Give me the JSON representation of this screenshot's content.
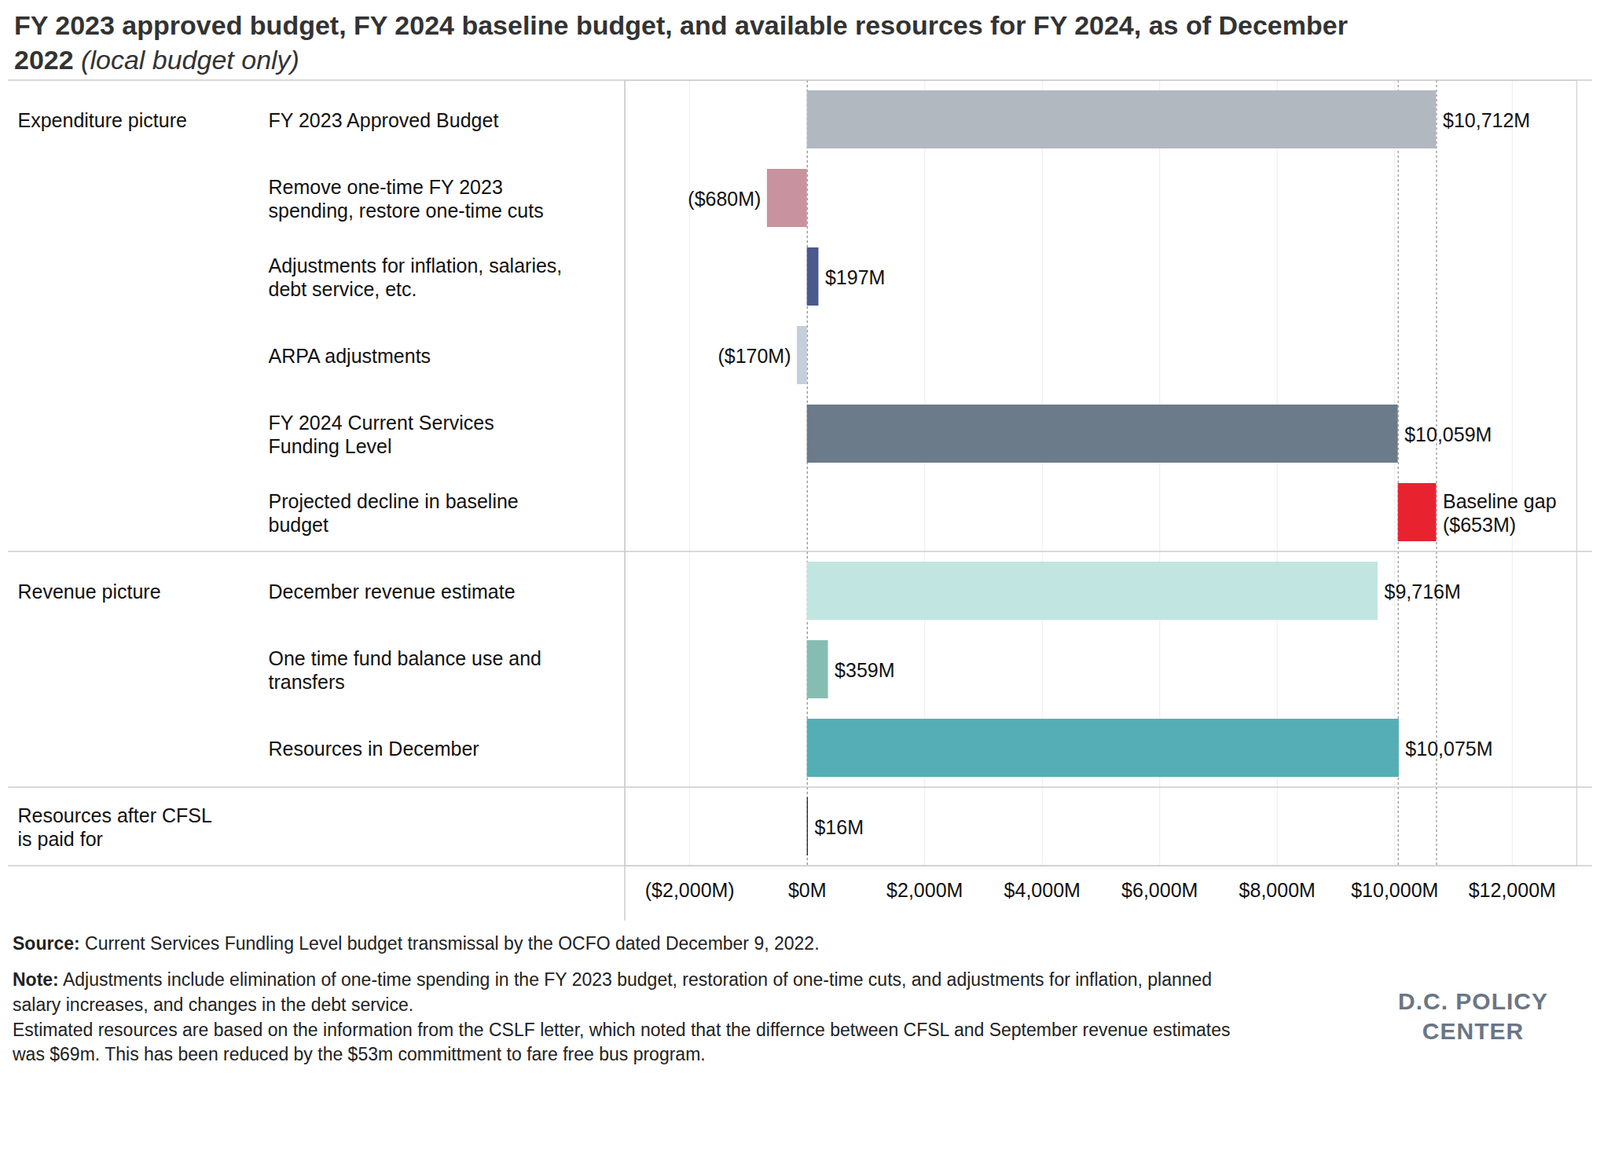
{
  "chart_data": {
    "type": "bar",
    "orientation": "horizontal",
    "title": "FY 2023 approved budget, FY 2024 baseline budget, and available resources for FY 2024, as of December 2022",
    "subtitle": "(local budget only)",
    "row_groups": [
      "Expenditure picture",
      null,
      null,
      null,
      null,
      null,
      "Revenue picture",
      null,
      null,
      "Resources after CFSL\nis paid for"
    ],
    "categories": [
      "FY 2023 Approved Budget",
      "Remove one-time FY 2023\nspending, restore one-time cuts",
      "Adjustments for inflation, salaries,\ndebt service, etc.",
      "ARPA adjustments",
      "FY 2024 Current Services\nFunding Level",
      "Projected decline in baseline\nbudget",
      "December revenue estimate",
      "One time fund balance use and\ntransfers",
      "Resources in December",
      null
    ],
    "starts": [
      0,
      0,
      0,
      0,
      0,
      10712,
      0,
      0,
      0,
      0
    ],
    "values": [
      10712,
      -680,
      197,
      -170,
      10059,
      -653,
      9716,
      359,
      10075,
      16
    ],
    "value_labels": [
      "$10,712M",
      "($680M)",
      "$197M",
      "($170M)",
      "$10,059M",
      "Baseline gap\n($653M)",
      "$9,716M",
      "$359M",
      "$10,075M",
      "$16M"
    ],
    "colors": [
      "#b1b8c0",
      "#c9929f",
      "#4b5a8c",
      "#c4cfdb",
      "#6c7b89",
      "#e8232f",
      "#c1e5e0",
      "#86bdb3",
      "#55aeb5",
      "#1a1a1a"
    ],
    "data_labels": true,
    "xlim": [
      -3100,
      13100
    ],
    "xticks": [
      {
        "value": -2000,
        "label": "($2,000M)"
      },
      {
        "value": 0,
        "label": "$0M"
      },
      {
        "value": 2000,
        "label": "$2,000M"
      },
      {
        "value": 4000,
        "label": "$4,000M"
      },
      {
        "value": 6000,
        "label": "$6,000M"
      },
      {
        "value": 8000,
        "label": "$8,000M"
      },
      {
        "value": 10000,
        "label": "$10,000M"
      },
      {
        "value": 12000,
        "label": "$12,000M"
      }
    ],
    "grid": true,
    "reference_lines": [
      0,
      10059,
      10712
    ],
    "source_label": "Source:",
    "source": "Current Services Fundling Level budget transmissal by the OCFO dated December 9, 2022.",
    "note_label": "Note:",
    "notes": [
      "Adjustments include elimination of one-time spending in the FY 2023 budget, restoration of one-time cuts, and adjustments for inflation, planned salary increases, and changes in the debt service.",
      "Estimated resources are based on the information from the CSLF letter, which noted that the differnce between CFSL and September revenue estimates was $69m. This has been reduced by the $53m committment to fare free bus program."
    ],
    "branding": [
      "D.C. POLICY",
      "CENTER"
    ]
  }
}
